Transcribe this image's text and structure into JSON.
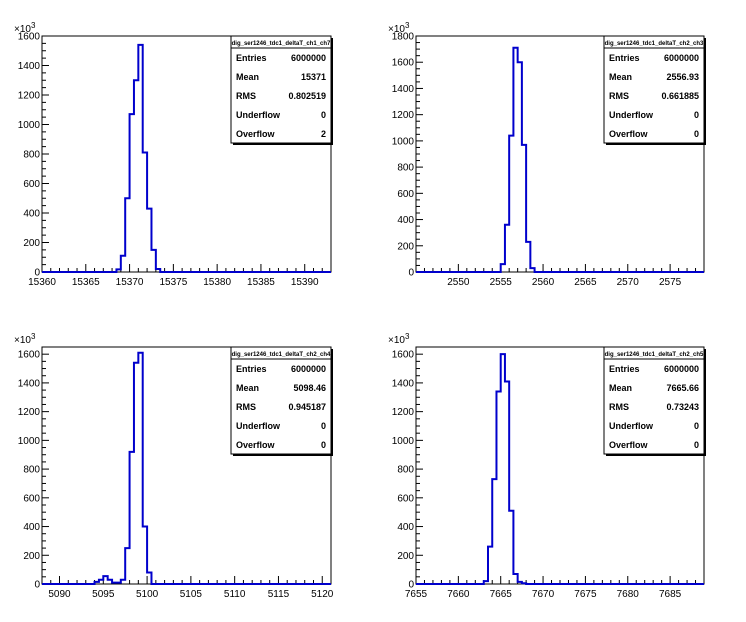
{
  "chart_data": [
    {
      "type": "histogram",
      "stats_title": "dig_ser1246_tdc1_deltaT_ch1_ch7",
      "exponent_label": "×10",
      "exponent_power": "3",
      "xlim": [
        15360,
        15393
      ],
      "ylim": [
        0,
        1600
      ],
      "xticks": [
        15360,
        15365,
        15370,
        15375,
        15380,
        15385,
        15390
      ],
      "yticks": [
        0,
        200,
        400,
        600,
        800,
        1000,
        1200,
        1400,
        1600
      ],
      "bins": {
        "x": [
          15368.5,
          15369.0,
          15369.5,
          15370.0,
          15370.5,
          15371.0,
          15371.5,
          15372.0,
          15372.5,
          15373.0
        ],
        "values": [
          18,
          110,
          500,
          1070,
          1300,
          1540,
          810,
          430,
          150,
          20
        ]
      },
      "stats": [
        {
          "label": "Entries",
          "value": "6000000"
        },
        {
          "label": "Mean",
          "value": "15371"
        },
        {
          "label": "RMS",
          "value": "0.802519"
        },
        {
          "label": "Underflow",
          "value": "0"
        },
        {
          "label": "Overflow",
          "value": "2"
        }
      ],
      "color": "#0000cc"
    },
    {
      "type": "histogram",
      "stats_title": "dig_ser1246_tdc1_deltaT_ch2_ch3",
      "exponent_label": "×10",
      "exponent_power": "3",
      "xlim": [
        2545,
        2579
      ],
      "ylim": [
        0,
        1800
      ],
      "xticks": [
        2550,
        2555,
        2560,
        2565,
        2570,
        2575
      ],
      "yticks": [
        0,
        200,
        400,
        600,
        800,
        1000,
        1200,
        1400,
        1600,
        1800
      ],
      "bins": {
        "x": [
          2555.0,
          2555.5,
          2556.0,
          2556.5,
          2557.0,
          2557.5,
          2558.0,
          2558.5
        ],
        "values": [
          60,
          360,
          1040,
          1710,
          1600,
          970,
          230,
          30
        ]
      },
      "stats": [
        {
          "label": "Entries",
          "value": "6000000"
        },
        {
          "label": "Mean",
          "value": "2556.93"
        },
        {
          "label": "RMS",
          "value": "0.661885"
        },
        {
          "label": "Underflow",
          "value": "0"
        },
        {
          "label": "Overflow",
          "value": "0"
        }
      ],
      "color": "#0000cc"
    },
    {
      "type": "histogram",
      "stats_title": "dig_ser1246_tdc1_deltaT_ch2_ch4",
      "exponent_label": "×10",
      "exponent_power": "3",
      "xlim": [
        5088,
        5121
      ],
      "ylim": [
        0,
        1650
      ],
      "xticks": [
        5090,
        5095,
        5100,
        5105,
        5110,
        5115,
        5120
      ],
      "yticks": [
        0,
        200,
        400,
        600,
        800,
        1000,
        1200,
        1400,
        1600
      ],
      "bins": {
        "x": [
          5094.0,
          5094.5,
          5095.0,
          5095.5,
          5096.0,
          5096.5,
          5097.0,
          5097.5,
          5098.0,
          5098.5,
          5099.0,
          5099.5,
          5100.0
        ],
        "values": [
          15,
          30,
          55,
          30,
          10,
          10,
          30,
          250,
          920,
          1540,
          1610,
          400,
          80
        ]
      },
      "stats": [
        {
          "label": "Entries",
          "value": "6000000"
        },
        {
          "label": "Mean",
          "value": "5098.46"
        },
        {
          "label": "RMS",
          "value": "0.945187"
        },
        {
          "label": "Underflow",
          "value": "0"
        },
        {
          "label": "Overflow",
          "value": "0"
        }
      ],
      "color": "#0000cc"
    },
    {
      "type": "histogram",
      "stats_title": "dig_ser1246_tdc1_deltaT_ch2_ch5",
      "exponent_label": "×10",
      "exponent_power": "3",
      "xlim": [
        7655,
        7689
      ],
      "ylim": [
        0,
        1650
      ],
      "xticks": [
        7655,
        7660,
        7665,
        7670,
        7675,
        7680,
        7685
      ],
      "yticks": [
        0,
        200,
        400,
        600,
        800,
        1000,
        1200,
        1400,
        1600
      ],
      "bins": {
        "x": [
          7663.0,
          7663.5,
          7664.0,
          7664.5,
          7665.0,
          7665.5,
          7666.0,
          7666.5,
          7667.0,
          7667.5
        ],
        "values": [
          20,
          260,
          730,
          1340,
          1600,
          1410,
          510,
          70,
          15,
          5
        ]
      },
      "stats": [
        {
          "label": "Entries",
          "value": "6000000"
        },
        {
          "label": "Mean",
          "value": "7665.66"
        },
        {
          "label": "RMS",
          "value": "0.73243"
        },
        {
          "label": "Underflow",
          "value": "0"
        },
        {
          "label": "Overflow",
          "value": "0"
        }
      ],
      "color": "#0000cc"
    }
  ]
}
